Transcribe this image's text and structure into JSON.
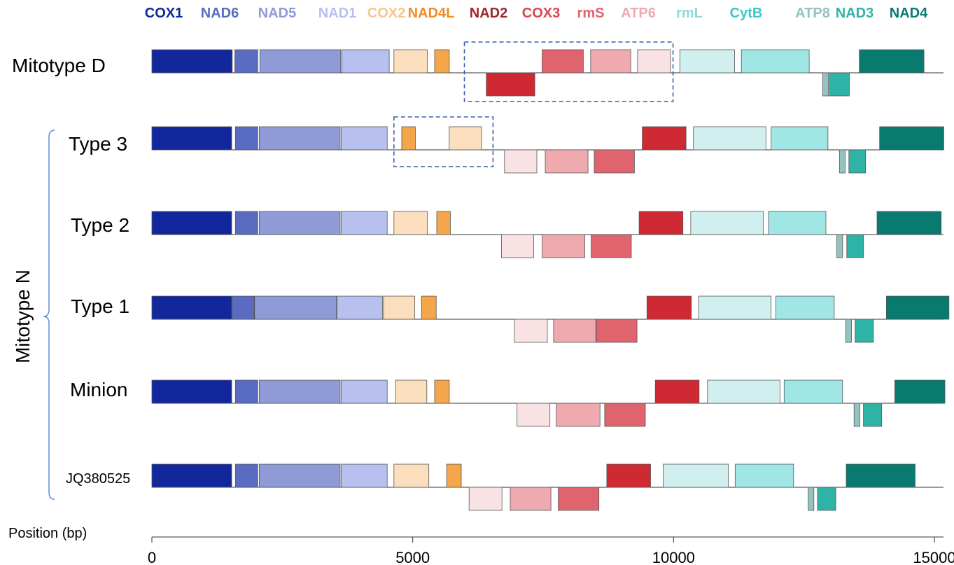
{
  "legend": [
    {
      "name": "COX1",
      "color": "#13279c"
    },
    {
      "name": "NAD6",
      "color": "#5a6cc1"
    },
    {
      "name": "NAD5",
      "color": "#8f9bd6"
    },
    {
      "name": "NAD1",
      "color": "#b7c0ee"
    },
    {
      "name": "COX2",
      "color": "#fbdebd"
    },
    {
      "name": "NAD4L",
      "color": "#f5a54a"
    },
    {
      "name": "NAD2",
      "color": "#cf2a33"
    },
    {
      "name": "COX3",
      "color": "#e0646e"
    },
    {
      "name": "rmS",
      "color": "#efaaaf"
    },
    {
      "name": "ATP6",
      "color": "#f9e2e4"
    },
    {
      "name": "rmL",
      "color": "#d1efef"
    },
    {
      "name": "CytB",
      "color": "#a0e6e5"
    },
    {
      "name": "ATP8",
      "color": "#92c3bf"
    },
    {
      "name": "NAD3",
      "color": "#2fb3a7"
    },
    {
      "name": "NAD4",
      "color": "#097a70"
    }
  ],
  "legend_text_colors": {
    "COX1": "#13279c",
    "NAD6": "#5a6cc1",
    "NAD5": "#8f9bd6",
    "NAD1": "#b7c0ee",
    "COX2": "#f7c68f",
    "NAD4L": "#ee8c22",
    "NAD2": "#a0242c",
    "COX3": "#d9454f",
    "rmS": "#e0646e",
    "ATP6": "#efaaaf",
    "rmL": "#8fd8d8",
    "CytB": "#3cc7c6",
    "ATP8": "#92c3bf",
    "NAD3": "#2fb3a7",
    "NAD4": "#097a70"
  },
  "rows": [
    {
      "label": "Mitotype D",
      "genes": [
        {
          "gene": "COX1",
          "start": 0,
          "end": 1540,
          "strand": "+"
        },
        {
          "gene": "NAD6",
          "start": 1590,
          "end": 2030,
          "strand": "+"
        },
        {
          "gene": "NAD5",
          "start": 2070,
          "end": 3620,
          "strand": "+"
        },
        {
          "gene": "NAD1",
          "start": 3640,
          "end": 4550,
          "strand": "+"
        },
        {
          "gene": "COX2",
          "start": 4640,
          "end": 5280,
          "strand": "+"
        },
        {
          "gene": "NAD4L",
          "start": 5420,
          "end": 5700,
          "strand": "+"
        },
        {
          "gene": "NAD2",
          "start": 6410,
          "end": 7340,
          "strand": "-"
        },
        {
          "gene": "COX3",
          "start": 7480,
          "end": 8270,
          "strand": "+"
        },
        {
          "gene": "rmS",
          "start": 8410,
          "end": 9180,
          "strand": "+"
        },
        {
          "gene": "ATP6",
          "start": 9310,
          "end": 9940,
          "strand": "+"
        },
        {
          "gene": "rmL",
          "start": 10120,
          "end": 11170,
          "strand": "+"
        },
        {
          "gene": "CytB",
          "start": 11300,
          "end": 12600,
          "strand": "+"
        },
        {
          "gene": "ATP8",
          "start": 12860,
          "end": 12970,
          "strand": "-"
        },
        {
          "gene": "NAD3",
          "start": 12990,
          "end": 13370,
          "strand": "-"
        },
        {
          "gene": "NAD4",
          "start": 13560,
          "end": 14800,
          "strand": "+"
        }
      ]
    },
    {
      "label": "Type 3",
      "genes": [
        {
          "gene": "COX1",
          "start": 0,
          "end": 1530,
          "strand": "+"
        },
        {
          "gene": "NAD6",
          "start": 1600,
          "end": 2030,
          "strand": "+"
        },
        {
          "gene": "NAD5",
          "start": 2060,
          "end": 3610,
          "strand": "+"
        },
        {
          "gene": "NAD1",
          "start": 3630,
          "end": 4510,
          "strand": "+"
        },
        {
          "gene": "NAD4L",
          "start": 4790,
          "end": 5050,
          "strand": "+"
        },
        {
          "gene": "COX2",
          "start": 5700,
          "end": 6320,
          "strand": "+"
        },
        {
          "gene": "ATP6",
          "start": 6760,
          "end": 7380,
          "strand": "-"
        },
        {
          "gene": "rmS",
          "start": 7540,
          "end": 8360,
          "strand": "-"
        },
        {
          "gene": "COX3",
          "start": 8480,
          "end": 9250,
          "strand": "-"
        },
        {
          "gene": "NAD2",
          "start": 9400,
          "end": 10240,
          "strand": "+"
        },
        {
          "gene": "rmL",
          "start": 10380,
          "end": 11770,
          "strand": "+"
        },
        {
          "gene": "CytB",
          "start": 11870,
          "end": 12960,
          "strand": "+"
        },
        {
          "gene": "ATP8",
          "start": 13180,
          "end": 13290,
          "strand": "-"
        },
        {
          "gene": "NAD3",
          "start": 13360,
          "end": 13680,
          "strand": "-"
        },
        {
          "gene": "NAD4",
          "start": 13950,
          "end": 15180,
          "strand": "+"
        }
      ]
    },
    {
      "label": "Type 2",
      "genes": [
        {
          "gene": "COX1",
          "start": 0,
          "end": 1530,
          "strand": "+"
        },
        {
          "gene": "NAD6",
          "start": 1600,
          "end": 2030,
          "strand": "+"
        },
        {
          "gene": "NAD5",
          "start": 2060,
          "end": 3610,
          "strand": "+"
        },
        {
          "gene": "NAD1",
          "start": 3630,
          "end": 4510,
          "strand": "+"
        },
        {
          "gene": "COX2",
          "start": 4640,
          "end": 5280,
          "strand": "+"
        },
        {
          "gene": "NAD4L",
          "start": 5460,
          "end": 5720,
          "strand": "+"
        },
        {
          "gene": "ATP6",
          "start": 6700,
          "end": 7320,
          "strand": "-"
        },
        {
          "gene": "rmS",
          "start": 7480,
          "end": 8300,
          "strand": "-"
        },
        {
          "gene": "COX3",
          "start": 8420,
          "end": 9190,
          "strand": "-"
        },
        {
          "gene": "NAD2",
          "start": 9340,
          "end": 10180,
          "strand": "+"
        },
        {
          "gene": "rmL",
          "start": 10330,
          "end": 11720,
          "strand": "+"
        },
        {
          "gene": "CytB",
          "start": 11820,
          "end": 12920,
          "strand": "+"
        },
        {
          "gene": "ATP8",
          "start": 13130,
          "end": 13240,
          "strand": "-"
        },
        {
          "gene": "NAD3",
          "start": 13320,
          "end": 13640,
          "strand": "-"
        },
        {
          "gene": "NAD4",
          "start": 13900,
          "end": 15130,
          "strand": "+"
        }
      ]
    },
    {
      "label": "Type 1",
      "genes": [
        {
          "gene": "COX1",
          "start": 0,
          "end": 1530,
          "strand": "+"
        },
        {
          "gene": "NAD6",
          "start": 1540,
          "end": 1960,
          "strand": "+"
        },
        {
          "gene": "NAD5",
          "start": 1970,
          "end": 3540,
          "strand": "+"
        },
        {
          "gene": "NAD1",
          "start": 3550,
          "end": 4420,
          "strand": "+"
        },
        {
          "gene": "COX2",
          "start": 4440,
          "end": 5040,
          "strand": "+"
        },
        {
          "gene": "NAD4L",
          "start": 5170,
          "end": 5450,
          "strand": "+"
        },
        {
          "gene": "ATP6",
          "start": 6950,
          "end": 7580,
          "strand": "-"
        },
        {
          "gene": "rmS",
          "start": 7700,
          "end": 8510,
          "strand": "-"
        },
        {
          "gene": "COX3",
          "start": 8520,
          "end": 9300,
          "strand": "-"
        },
        {
          "gene": "NAD2",
          "start": 9490,
          "end": 10340,
          "strand": "+"
        },
        {
          "gene": "rmL",
          "start": 10480,
          "end": 11870,
          "strand": "+"
        },
        {
          "gene": "CytB",
          "start": 11960,
          "end": 13080,
          "strand": "+"
        },
        {
          "gene": "ATP8",
          "start": 13300,
          "end": 13410,
          "strand": "-"
        },
        {
          "gene": "NAD3",
          "start": 13480,
          "end": 13830,
          "strand": "-"
        },
        {
          "gene": "NAD4",
          "start": 14080,
          "end": 15280,
          "strand": "+"
        }
      ]
    },
    {
      "label": "Minion",
      "genes": [
        {
          "gene": "COX1",
          "start": 0,
          "end": 1530,
          "strand": "+"
        },
        {
          "gene": "NAD6",
          "start": 1600,
          "end": 2030,
          "strand": "+"
        },
        {
          "gene": "NAD5",
          "start": 2060,
          "end": 3610,
          "strand": "+"
        },
        {
          "gene": "NAD1",
          "start": 3630,
          "end": 4510,
          "strand": "+"
        },
        {
          "gene": "COX2",
          "start": 4670,
          "end": 5270,
          "strand": "+"
        },
        {
          "gene": "NAD4L",
          "start": 5420,
          "end": 5700,
          "strand": "+"
        },
        {
          "gene": "ATP6",
          "start": 7000,
          "end": 7630,
          "strand": "-"
        },
        {
          "gene": "rmS",
          "start": 7750,
          "end": 8590,
          "strand": "-"
        },
        {
          "gene": "COX3",
          "start": 8680,
          "end": 9460,
          "strand": "-"
        },
        {
          "gene": "NAD2",
          "start": 9650,
          "end": 10490,
          "strand": "+"
        },
        {
          "gene": "rmL",
          "start": 10650,
          "end": 12040,
          "strand": "+"
        },
        {
          "gene": "CytB",
          "start": 12120,
          "end": 13240,
          "strand": "+"
        },
        {
          "gene": "ATP8",
          "start": 13460,
          "end": 13570,
          "strand": "-"
        },
        {
          "gene": "NAD3",
          "start": 13640,
          "end": 13990,
          "strand": "-"
        },
        {
          "gene": "NAD4",
          "start": 14240,
          "end": 15200,
          "strand": "+"
        }
      ]
    },
    {
      "label": "JQ380525",
      "genes": [
        {
          "gene": "COX1",
          "start": 0,
          "end": 1530,
          "strand": "+"
        },
        {
          "gene": "NAD6",
          "start": 1600,
          "end": 2030,
          "strand": "+"
        },
        {
          "gene": "NAD5",
          "start": 2060,
          "end": 3610,
          "strand": "+"
        },
        {
          "gene": "NAD1",
          "start": 3630,
          "end": 4510,
          "strand": "+"
        },
        {
          "gene": "COX2",
          "start": 4640,
          "end": 5310,
          "strand": "+"
        },
        {
          "gene": "NAD4L",
          "start": 5650,
          "end": 5930,
          "strand": "+"
        },
        {
          "gene": "ATP6",
          "start": 6080,
          "end": 6710,
          "strand": "-"
        },
        {
          "gene": "rmS",
          "start": 6870,
          "end": 7650,
          "strand": "-"
        },
        {
          "gene": "COX3",
          "start": 7790,
          "end": 8570,
          "strand": "-"
        },
        {
          "gene": "NAD2",
          "start": 8720,
          "end": 9560,
          "strand": "+"
        },
        {
          "gene": "rmL",
          "start": 9800,
          "end": 11050,
          "strand": "+"
        },
        {
          "gene": "CytB",
          "start": 11180,
          "end": 12300,
          "strand": "+"
        },
        {
          "gene": "ATP8",
          "start": 12580,
          "end": 12690,
          "strand": "-"
        },
        {
          "gene": "NAD3",
          "start": 12760,
          "end": 13110,
          "strand": "-"
        },
        {
          "gene": "NAD4",
          "start": 13310,
          "end": 14630,
          "strand": "+"
        }
      ]
    }
  ],
  "group_label": "Mitotype N",
  "group_rows": [
    "Type 3",
    "Type 2",
    "Type 1",
    "Minion",
    "JQ380525"
  ],
  "highlights": [
    {
      "row": "Mitotype D",
      "start": 5990,
      "end": 9990
    },
    {
      "row": "Type 3",
      "start": 4640,
      "end": 6540
    }
  ],
  "axis": {
    "title": "Position (bp)",
    "range": [
      0,
      15200
    ],
    "ticks": [
      0,
      5000,
      10000,
      15000
    ],
    "tick_labels": [
      "0",
      "5000",
      "10000",
      "15000"
    ]
  }
}
